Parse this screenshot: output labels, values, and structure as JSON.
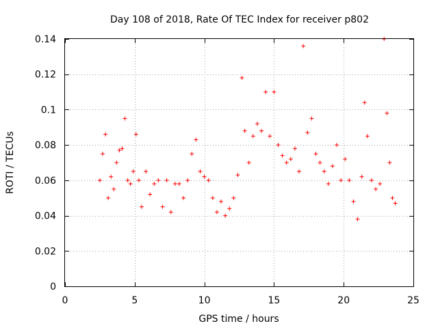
{
  "chart_data": {
    "type": "scatter",
    "title": "Day 108 of 2018, Rate Of TEC Index for receiver p802",
    "xlabel": "GPS time / hours",
    "ylabel": "ROTI / TECUs",
    "xlim": [
      0,
      25
    ],
    "ylim": [
      0,
      0.14
    ],
    "xticks": [
      0,
      5,
      10,
      15,
      20,
      25
    ],
    "xtick_labels": [
      "0",
      "5",
      "10",
      "15",
      "20",
      "25"
    ],
    "yticks": [
      0,
      0.02,
      0.04,
      0.06,
      0.08,
      0.1,
      0.12,
      0.14
    ],
    "ytick_labels": [
      "0",
      "0.02",
      "0.04",
      "0.06",
      "0.08",
      "0.1",
      "0.12",
      "0.14"
    ],
    "grid": true,
    "marker": "+",
    "colors": {
      "series": "#ff0000",
      "grid": "#a0a0a0",
      "frame": "#000000"
    },
    "series": [
      {
        "name": "",
        "x": [
          2.5,
          2.7,
          2.9,
          3.1,
          3.3,
          3.5,
          3.7,
          3.9,
          4.1,
          4.3,
          4.5,
          4.7,
          4.9,
          5.1,
          5.3,
          5.5,
          5.8,
          6.1,
          6.4,
          6.7,
          7.0,
          7.3,
          7.6,
          7.9,
          8.2,
          8.5,
          8.8,
          9.1,
          9.4,
          9.7,
          10.0,
          10.3,
          10.6,
          10.9,
          11.2,
          11.5,
          11.8,
          12.1,
          12.4,
          12.7,
          12.9,
          13.2,
          13.5,
          13.8,
          14.1,
          14.4,
          14.7,
          15.0,
          15.3,
          15.6,
          15.9,
          16.2,
          16.5,
          16.8,
          17.1,
          17.4,
          17.7,
          18.0,
          18.3,
          18.6,
          18.9,
          19.2,
          19.5,
          19.8,
          20.1,
          20.4,
          20.7,
          21.0,
          21.3,
          21.5,
          21.7,
          22.0,
          22.3,
          22.6,
          22.9,
          23.1,
          23.3,
          23.5,
          23.7
        ],
        "y": [
          0.06,
          0.075,
          0.086,
          0.05,
          0.062,
          0.055,
          0.07,
          0.077,
          0.078,
          0.095,
          0.06,
          0.058,
          0.065,
          0.086,
          0.06,
          0.045,
          0.065,
          0.052,
          0.058,
          0.06,
          0.045,
          0.06,
          0.042,
          0.058,
          0.058,
          0.05,
          0.06,
          0.075,
          0.083,
          0.065,
          0.062,
          0.06,
          0.05,
          0.042,
          0.048,
          0.04,
          0.044,
          0.05,
          0.063,
          0.118,
          0.088,
          0.07,
          0.085,
          0.092,
          0.088,
          0.11,
          0.085,
          0.11,
          0.08,
          0.074,
          0.07,
          0.072,
          0.078,
          0.065,
          0.136,
          0.087,
          0.095,
          0.075,
          0.07,
          0.065,
          0.058,
          0.068,
          0.08,
          0.06,
          0.072,
          0.06,
          0.048,
          0.038,
          0.062,
          0.104,
          0.085,
          0.06,
          0.055,
          0.058,
          0.14,
          0.098,
          0.07,
          0.05,
          0.047
        ]
      }
    ]
  }
}
